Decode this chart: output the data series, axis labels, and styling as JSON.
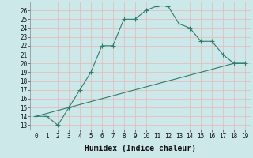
{
  "xlabel": "Humidex (Indice chaleur)",
  "x": [
    0,
    1,
    2,
    3,
    4,
    5,
    6,
    7,
    8,
    9,
    10,
    11,
    12,
    13,
    14,
    15,
    16,
    17,
    18,
    19
  ],
  "y_curve": [
    14,
    14,
    13,
    15,
    17,
    19,
    22,
    22,
    25,
    25,
    26,
    26.5,
    26.5,
    24.5,
    24,
    22.5,
    22.5,
    21,
    20,
    20
  ],
  "y_line": [
    14,
    14.33,
    14.67,
    15,
    15.33,
    15.67,
    16,
    16.33,
    16.67,
    17,
    17.33,
    17.67,
    18,
    18.33,
    18.67,
    19,
    19.33,
    19.67,
    20,
    20
  ],
  "line_color": "#2d7d6b",
  "bg_color": "#cce8e8",
  "grid_color_major": "#e8b8b8",
  "grid_color_minor": "#cce8e8",
  "ylim": [
    12.5,
    27
  ],
  "xlim": [
    -0.5,
    19.5
  ],
  "yticks": [
    13,
    14,
    15,
    16,
    17,
    18,
    19,
    20,
    21,
    22,
    23,
    24,
    25,
    26
  ],
  "xticks": [
    0,
    1,
    2,
    3,
    4,
    5,
    6,
    7,
    8,
    9,
    10,
    11,
    12,
    13,
    14,
    15,
    16,
    17,
    18,
    19
  ],
  "tick_fontsize": 5.5,
  "xlabel_fontsize": 7
}
